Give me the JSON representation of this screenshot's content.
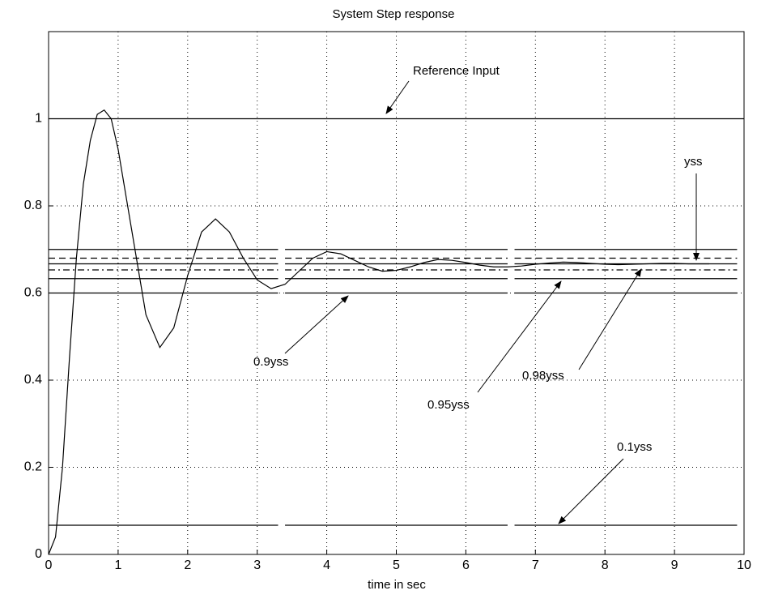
{
  "chart_data": {
    "type": "line",
    "title": "System Step response",
    "x_label": "time in sec",
    "xlim": [
      0,
      10
    ],
    "ylim": [
      0,
      1.2
    ],
    "xticks": [
      0,
      1,
      2,
      3,
      4,
      5,
      6,
      7,
      8,
      9,
      10
    ],
    "yticks": [
      0,
      0.2,
      0.4,
      0.6,
      0.8,
      1
    ],
    "grid": true,
    "series": [
      {
        "color": "#000000",
        "linestyle": "solid",
        "x": [
          0,
          0.1,
          0.2,
          0.3,
          0.4,
          0.5,
          0.6,
          0.7,
          0.8,
          0.9,
          1.0,
          1.2,
          1.4,
          1.6,
          1.8,
          2.0,
          2.2,
          2.4,
          2.6,
          2.8,
          3.0,
          3.2,
          3.4,
          3.6,
          3.8,
          4.0,
          4.2,
          4.4,
          4.6,
          4.8,
          5.0,
          5.2,
          5.4,
          5.6,
          5.8,
          6.0,
          6.2,
          6.4,
          6.6,
          6.8,
          7.0,
          7.2,
          7.4,
          7.6,
          7.8,
          8.0,
          8.2,
          8.4,
          8.6,
          8.8,
          9.0,
          9.2,
          9.5
        ],
        "values": [
          0,
          0.04,
          0.2,
          0.45,
          0.68,
          0.85,
          0.95,
          1.01,
          1.02,
          1.0,
          0.93,
          0.74,
          0.55,
          0.475,
          0.52,
          0.64,
          0.74,
          0.77,
          0.74,
          0.68,
          0.63,
          0.61,
          0.62,
          0.65,
          0.68,
          0.695,
          0.69,
          0.675,
          0.66,
          0.65,
          0.652,
          0.66,
          0.67,
          0.677,
          0.675,
          0.67,
          0.664,
          0.66,
          0.66,
          0.662,
          0.666,
          0.669,
          0.671,
          0.67,
          0.668,
          0.666,
          0.665,
          0.666,
          0.667,
          0.668,
          0.668,
          0.667,
          0.667
        ]
      },
      {
        "color": "#000000",
        "linestyle": "solid",
        "x": [
          0,
          10
        ],
        "values": [
          1,
          1
        ]
      },
      {
        "color": "#000000",
        "linestyle": "solid",
        "x": [
          0,
          3.3,
          3.35,
          3.4,
          6.6,
          6.65,
          6.7,
          9.9
        ],
        "values": [
          0.7,
          0.7,
          null,
          0.7,
          0.7,
          null,
          0.7,
          0.7
        ]
      },
      {
        "color": "#000000",
        "linestyle": "dashed",
        "x": [
          0,
          3.3,
          3.35,
          3.4,
          6.6,
          6.65,
          6.7,
          9.9
        ],
        "values": [
          0.68,
          0.68,
          null,
          0.68,
          0.68,
          null,
          0.68,
          0.68
        ]
      },
      {
        "color": "#000000",
        "linestyle": "solid",
        "x": [
          0,
          3.3,
          3.35,
          3.4,
          6.6,
          6.65,
          6.7,
          9.9
        ],
        "values": [
          0.667,
          0.667,
          null,
          0.667,
          0.667,
          null,
          0.667,
          0.667
        ]
      },
      {
        "color": "#000000",
        "linestyle": "dashdot",
        "x": [
          0,
          3.3,
          3.35,
          3.4,
          6.6,
          6.65,
          6.7,
          9.9
        ],
        "values": [
          0.653,
          0.653,
          null,
          0.653,
          0.653,
          null,
          0.653,
          0.653
        ]
      },
      {
        "color": "#000000",
        "linestyle": "solid",
        "x": [
          0,
          3.3,
          3.35,
          3.4,
          6.6,
          6.65,
          6.7,
          9.9
        ],
        "values": [
          0.633,
          0.633,
          null,
          0.633,
          0.633,
          null,
          0.633,
          0.633
        ]
      },
      {
        "color": "#000000",
        "linestyle": "solid",
        "x": [
          0,
          3.3,
          3.35,
          3.4,
          6.6,
          6.65,
          6.7,
          9.9
        ],
        "values": [
          0.6,
          0.6,
          null,
          0.6,
          0.6,
          null,
          0.6,
          0.6
        ]
      },
      {
        "color": "#000000",
        "linestyle": "solid",
        "x": [
          0,
          3.3,
          3.35,
          3.4,
          6.6,
          6.65,
          6.7,
          9.9
        ],
        "values": [
          0.067,
          0.067,
          null,
          0.067,
          0.067,
          null,
          0.067,
          0.067
        ]
      }
    ],
    "annotations": [
      "Reference Input",
      "yss",
      "0.9yss",
      "0.95yss",
      "0.98yss",
      "0.1yss"
    ]
  }
}
